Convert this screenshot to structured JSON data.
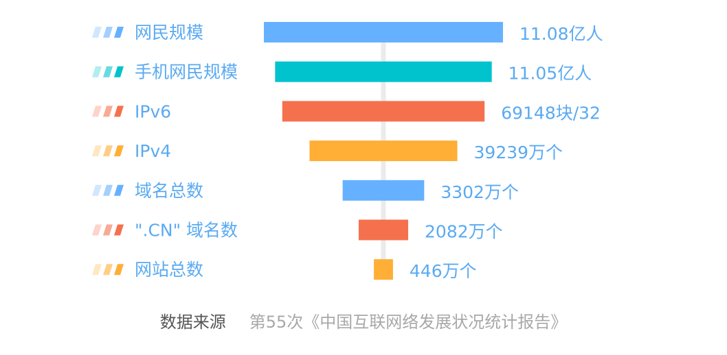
{
  "chart_data": {
    "type": "bar",
    "orientation": "horizontal",
    "layout": "funnel-centered",
    "categories": [
      "网民规模",
      "手机网民规模",
      "IPv6",
      "IPv4",
      "域名总数",
      "\".CN\" 域名数",
      "网站总数"
    ],
    "values": [
      11.08,
      11.05,
      69148,
      39239,
      3302,
      2082,
      446
    ],
    "units": [
      "亿人",
      "亿人",
      "块/32",
      "万个",
      "万个",
      "万个",
      "万个"
    ],
    "value_labels": [
      "11.08亿人",
      "11.05亿人",
      "69148块/32",
      "39239万个",
      "3302万个",
      "2082万个",
      "446万个"
    ],
    "bar_width_fraction": [
      1.0,
      0.906,
      0.846,
      0.618,
      0.341,
      0.207,
      0.08
    ],
    "colors": [
      "#66b1ff",
      "#00c3ce",
      "#f5714e",
      "#ffae36",
      "#66b1ff",
      "#f5714e",
      "#ffae36"
    ],
    "legend_placement": "left",
    "grid": false
  },
  "source": {
    "label": "数据来源",
    "text": "第55次《中国互联网络发展状况统计报告》"
  }
}
